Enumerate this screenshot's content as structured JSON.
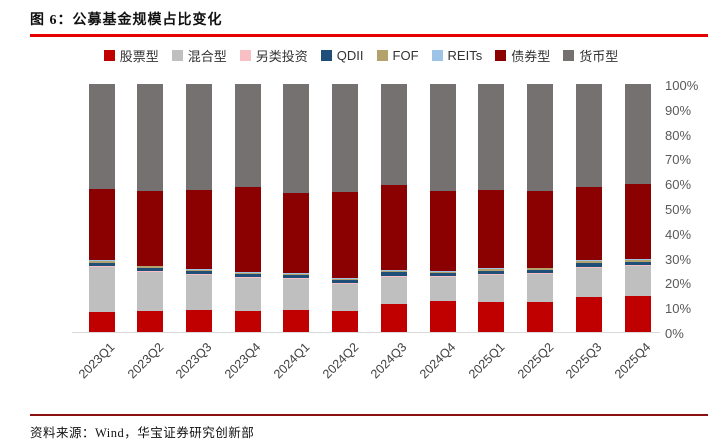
{
  "page": {
    "title": "图 6：公募基金规模占比变化",
    "source_label": "资料来源：Wind，华宝证券研究创新部"
  },
  "colors": {
    "title_rule": "#e60000",
    "footer_rule": "#8b1010",
    "axis_text": "#595959",
    "baseline": "#d9d9d9"
  },
  "chart_data": {
    "type": "bar",
    "stacked": true,
    "title": "公募基金规模占比变化",
    "xlabel": "",
    "ylabel": "",
    "ylim": [
      0,
      100
    ],
    "grid": false,
    "legend_position": "top",
    "y_axis_side": "right",
    "yticks": [
      "100%",
      "90%",
      "80%",
      "70%",
      "60%",
      "50%",
      "40%",
      "30%",
      "20%",
      "10%",
      "0%"
    ],
    "categories": [
      "2023Q1",
      "2023Q2",
      "2023Q3",
      "2023Q4",
      "2024Q1",
      "2024Q2",
      "2024Q3",
      "2024Q4",
      "2025Q1",
      "2025Q2",
      "2025Q3",
      "2025Q4"
    ],
    "series": [
      {
        "name": "股票型",
        "color": "#c00000",
        "values": [
          8.2,
          8.5,
          8.9,
          8.5,
          8.9,
          8.5,
          11.2,
          12.6,
          12.2,
          12.0,
          14.0,
          14.4
        ]
      },
      {
        "name": "混合型",
        "color": "#bfbfbf",
        "values": [
          17.9,
          15.8,
          14.1,
          13.2,
          12.5,
          10.9,
          11.1,
          9.7,
          10.8,
          11.3,
          11.9,
          12.2
        ]
      },
      {
        "name": "另类投资",
        "color": "#f8bfc4",
        "values": [
          0.4,
          0.3,
          0.3,
          0.3,
          0.3,
          0.3,
          0.4,
          0.3,
          0.4,
          0.4,
          0.4,
          0.4
        ]
      },
      {
        "name": "QDII",
        "color": "#1f4e79",
        "values": [
          1.5,
          1.3,
          1.3,
          1.3,
          1.2,
          1.2,
          1.4,
          1.2,
          1.4,
          1.4,
          1.6,
          1.4
        ]
      },
      {
        "name": "FOF",
        "color": "#b3a26b",
        "values": [
          0.8,
          0.6,
          0.6,
          0.6,
          0.6,
          0.6,
          0.7,
          0.6,
          0.7,
          0.7,
          0.8,
          0.7
        ]
      },
      {
        "name": "REITs",
        "color": "#9dc3e6",
        "values": [
          0.2,
          0.2,
          0.2,
          0.2,
          0.2,
          0.2,
          0.2,
          0.2,
          0.2,
          0.2,
          0.3,
          0.2
        ]
      },
      {
        "name": "债券型",
        "color": "#8b0000",
        "values": [
          28.7,
          30.1,
          31.9,
          34.4,
          32.3,
          34.7,
          34.3,
          32.4,
          31.6,
          31.0,
          29.6,
          30.4
        ]
      },
      {
        "name": "货币型",
        "color": "#767171",
        "values": [
          42.3,
          43.2,
          42.7,
          41.5,
          44.0,
          43.6,
          40.7,
          43.0,
          42.7,
          43.0,
          41.4,
          40.3
        ]
      }
    ]
  }
}
